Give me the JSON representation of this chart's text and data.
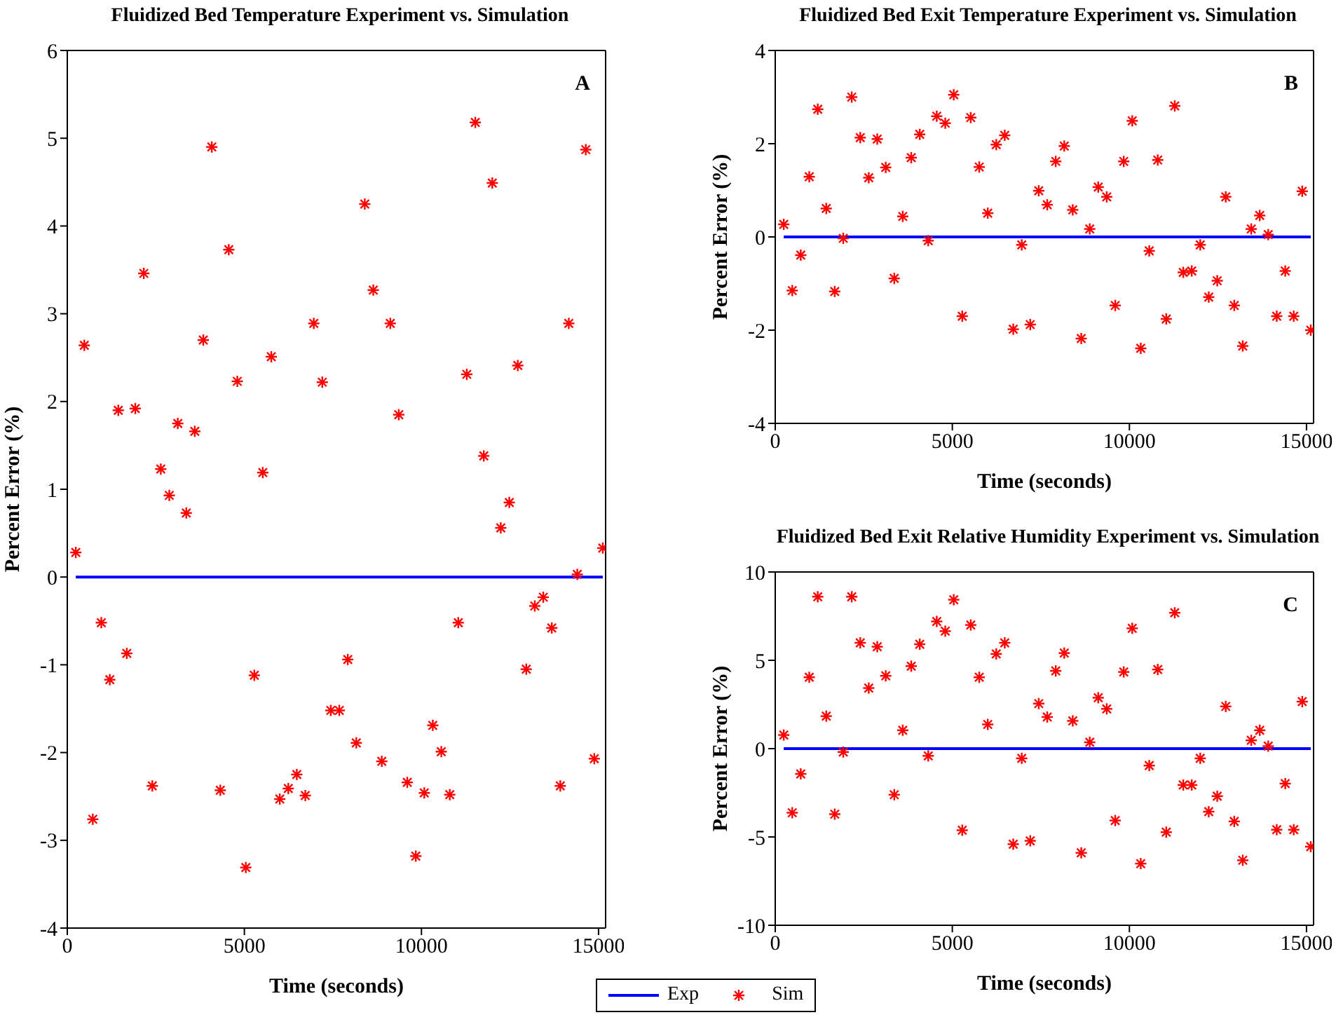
{
  "chart_data": [
    {
      "type": "scatter",
      "title": "Fluidized Bed Temperature Experiment vs. Simulation",
      "xlabel": "Time (seconds)",
      "ylabel": "Percent Error (%)",
      "annotations": [
        "A"
      ],
      "x": [
        240,
        480,
        720,
        960,
        1200,
        1440,
        1680,
        1920,
        2160,
        2400,
        2640,
        2880,
        3120,
        3360,
        3600,
        3840,
        4080,
        4320,
        4560,
        4800,
        5040,
        5280,
        5520,
        5760,
        6000,
        6240,
        6480,
        6720,
        6960,
        7200,
        7440,
        7680,
        7920,
        8160,
        8400,
        8640,
        8880,
        9120,
        9360,
        9600,
        9840,
        10080,
        10320,
        10560,
        10800,
        11040,
        11280,
        11520,
        11760,
        12000,
        12240,
        12480,
        12720,
        12960,
        13200,
        13440,
        13680,
        13920,
        14160,
        14400,
        14640,
        14880,
        15120
      ],
      "series": [
        {
          "type": "line",
          "color": "#0000ff",
          "line_style": "solid",
          "values": [
            0,
            0,
            0,
            0,
            0,
            0,
            0,
            0,
            0,
            0,
            0,
            0,
            0,
            0,
            0,
            0,
            0,
            0,
            0,
            0,
            0,
            0,
            0,
            0,
            0,
            0,
            0,
            0,
            0,
            0,
            0,
            0,
            0,
            0,
            0,
            0,
            0,
            0,
            0,
            0,
            0,
            0,
            0,
            0,
            0,
            0,
            0,
            0,
            0,
            0,
            0,
            0,
            0,
            0,
            0,
            0,
            0,
            0,
            0,
            0,
            0,
            0,
            0
          ]
        },
        {
          "type": "scatter",
          "color": "#ff0000",
          "marker": "cross",
          "values": [
            0.28,
            2.64,
            -2.76,
            -0.52,
            -1.17,
            1.9,
            -0.87,
            1.92,
            3.46,
            -2.38,
            1.23,
            0.93,
            1.75,
            0.73,
            1.66,
            2.7,
            4.9,
            -2.43,
            3.73,
            2.23,
            -3.31,
            -1.12,
            1.19,
            2.51,
            -2.53,
            -2.41,
            -2.25,
            -2.49,
            2.89,
            2.22,
            -1.52,
            -1.52,
            -0.94,
            -1.89,
            4.25,
            3.27,
            -2.1,
            2.89,
            1.85,
            -2.34,
            -3.18,
            -2.46,
            -1.69,
            -1.99,
            -2.48,
            -0.52,
            2.31,
            5.18,
            1.38,
            4.49,
            0.56,
            0.85,
            2.41,
            -1.05,
            -0.33,
            -0.23,
            -0.58,
            -2.38,
            2.89,
            0.03,
            4.87,
            -2.07,
            0.33
          ]
        }
      ],
      "xlim": [
        0,
        15200
      ],
      "xticks": [
        0,
        5000,
        10000,
        15000
      ],
      "ylim": [
        -4,
        6
      ],
      "yticks": [
        -4,
        -3,
        -2,
        -1,
        0,
        1,
        2,
        3,
        4,
        5,
        6
      ]
    },
    {
      "type": "scatter",
      "title": "Fluidized Bed Exit Temperature Experiment vs. Simulation",
      "xlabel": "Time (seconds)",
      "ylabel": "Percent Error (%)",
      "annotations": [
        "B"
      ],
      "x": [
        240,
        480,
        720,
        960,
        1200,
        1440,
        1680,
        1920,
        2160,
        2400,
        2640,
        2880,
        3120,
        3360,
        3600,
        3840,
        4080,
        4320,
        4560,
        4800,
        5040,
        5280,
        5520,
        5760,
        6000,
        6240,
        6480,
        6720,
        6960,
        7200,
        7440,
        7680,
        7920,
        8160,
        8400,
        8640,
        8880,
        9120,
        9360,
        9600,
        9840,
        10080,
        10320,
        10560,
        10800,
        11040,
        11280,
        11520,
        11760,
        12000,
        12240,
        12480,
        12720,
        12960,
        13200,
        13440,
        13680,
        13920,
        14160,
        14400,
        14640,
        14880,
        15120
      ],
      "series": [
        {
          "type": "line",
          "color": "#0000ff",
          "line_style": "solid",
          "values": [
            0,
            0,
            0,
            0,
            0,
            0,
            0,
            0,
            0,
            0,
            0,
            0,
            0,
            0,
            0,
            0,
            0,
            0,
            0,
            0,
            0,
            0,
            0,
            0,
            0,
            0,
            0,
            0,
            0,
            0,
            0,
            0,
            0,
            0,
            0,
            0,
            0,
            0,
            0,
            0,
            0,
            0,
            0,
            0,
            0,
            0,
            0,
            0,
            0,
            0,
            0,
            0,
            0,
            0,
            0,
            0,
            0,
            0,
            0,
            0,
            0,
            0,
            0
          ]
        },
        {
          "type": "scatter",
          "color": "#ff0000",
          "marker": "cross",
          "values": [
            0.27,
            -1.15,
            -0.39,
            1.29,
            2.74,
            0.61,
            -1.17,
            -0.03,
            3.0,
            2.13,
            1.27,
            2.1,
            1.49,
            -0.89,
            0.44,
            1.7,
            2.2,
            -0.08,
            2.59,
            2.44,
            3.05,
            -1.7,
            2.56,
            1.5,
            0.51,
            1.98,
            2.18,
            -1.98,
            -0.17,
            -1.88,
            0.99,
            0.69,
            1.62,
            1.95,
            0.58,
            -2.18,
            0.17,
            1.07,
            0.86,
            -1.47,
            1.62,
            2.49,
            -2.39,
            -0.3,
            1.65,
            -1.76,
            2.81,
            -0.76,
            -0.73,
            -0.17,
            -1.29,
            -0.94,
            0.86,
            -1.47,
            -2.34,
            0.17,
            0.46,
            0.05,
            -1.7,
            -0.73,
            -1.7,
            0.98,
            -2.0
          ]
        }
      ],
      "xlim": [
        0,
        15200
      ],
      "xticks": [
        0,
        5000,
        10000,
        15000
      ],
      "ylim": [
        -4,
        4
      ],
      "yticks": [
        -4,
        -2,
        0,
        2,
        4
      ]
    },
    {
      "type": "scatter",
      "title": "Fluidized Bed Exit Relative Humidity Experiment vs. Simulation",
      "xlabel": "Time (seconds)",
      "ylabel": "Percent Error (%)",
      "annotations": [
        "C"
      ],
      "legend": "bottom",
      "x": [
        240,
        480,
        720,
        960,
        1200,
        1440,
        1680,
        1920,
        2160,
        2400,
        2640,
        2880,
        3120,
        3360,
        3600,
        3840,
        4080,
        4320,
        4560,
        4800,
        5040,
        5280,
        5520,
        5760,
        6000,
        6240,
        6480,
        6720,
        6960,
        7200,
        7440,
        7680,
        7920,
        8160,
        8400,
        8640,
        8880,
        9120,
        9360,
        9600,
        9840,
        10080,
        10320,
        10560,
        10800,
        11040,
        11280,
        11520,
        11760,
        12000,
        12240,
        12480,
        12720,
        12960,
        13200,
        13440,
        13680,
        13920,
        14160,
        14400,
        14640,
        14880,
        15120
      ],
      "series": [
        {
          "name": "Exp",
          "type": "line",
          "color": "#0000ff",
          "line_style": "solid",
          "values": [
            0,
            0,
            0,
            0,
            0,
            0,
            0,
            0,
            0,
            0,
            0,
            0,
            0,
            0,
            0,
            0,
            0,
            0,
            0,
            0,
            0,
            0,
            0,
            0,
            0,
            0,
            0,
            0,
            0,
            0,
            0,
            0,
            0,
            0,
            0,
            0,
            0,
            0,
            0,
            0,
            0,
            0,
            0,
            0,
            0,
            0,
            0,
            0,
            0,
            0,
            0,
            0,
            0,
            0,
            0,
            0,
            0,
            0,
            0,
            0,
            0,
            0,
            0
          ]
        },
        {
          "name": "Sim",
          "type": "scatter",
          "color": "#ff0000",
          "marker": "cross",
          "values": [
            0.77,
            -3.63,
            -1.43,
            4.04,
            8.6,
            1.84,
            -3.71,
            -0.19,
            8.6,
            5.99,
            3.43,
            5.77,
            4.12,
            -2.61,
            1.04,
            4.67,
            5.91,
            -0.41,
            7.2,
            6.65,
            8.43,
            -4.62,
            7.0,
            4.04,
            1.37,
            5.36,
            5.99,
            -5.41,
            -0.55,
            -5.22,
            2.55,
            1.79,
            4.4,
            5.41,
            1.57,
            -5.9,
            0.36,
            2.88,
            2.25,
            -4.07,
            4.34,
            6.81,
            -6.51,
            -0.96,
            4.48,
            -4.73,
            7.69,
            -2.06,
            -2.06,
            -0.55,
            -3.57,
            -2.69,
            2.39,
            -4.12,
            -6.32,
            0.47,
            1.04,
            0.14,
            -4.59,
            -1.98,
            -4.59,
            2.66,
            -5.55
          ]
        }
      ],
      "xlim": [
        0,
        15200
      ],
      "xticks": [
        0,
        5000,
        10000,
        15000
      ],
      "ylim": [
        -10,
        10
      ],
      "yticks": [
        -10,
        -5,
        0,
        5,
        10
      ]
    }
  ]
}
